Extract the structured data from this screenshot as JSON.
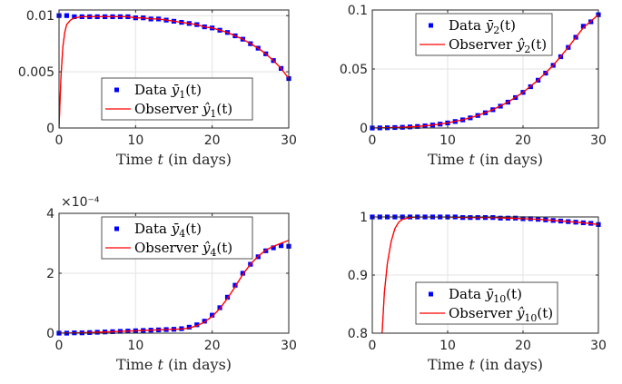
{
  "chart_data": [
    {
      "type": "line",
      "xlabel": "Time t (in days)",
      "xlim": [
        0,
        30
      ],
      "ylim": [
        0,
        0.0105
      ],
      "xticks": [
        "0",
        "10",
        "20",
        "30"
      ],
      "yticks": [
        "0",
        "0.005",
        "0.01"
      ],
      "ytick_values": [
        0,
        0.005,
        0.01
      ],
      "grid": true,
      "legend_position": "center",
      "series": [
        {
          "name": "Data ȳ1(t)",
          "style": "markers",
          "color": "#0000ff",
          "x": [
            0,
            1,
            2,
            3,
            4,
            5,
            6,
            7,
            8,
            9,
            10,
            11,
            12,
            13,
            14,
            15,
            16,
            17,
            18,
            19,
            20,
            21,
            22,
            23,
            24,
            25,
            26,
            27,
            28,
            29,
            30
          ],
          "y": [
            0.01,
            0.01,
            0.0099,
            0.0099,
            0.0099,
            0.0099,
            0.0099,
            0.0099,
            0.0099,
            0.0099,
            0.0098,
            0.0098,
            0.0097,
            0.0097,
            0.0096,
            0.0095,
            0.0094,
            0.0093,
            0.0092,
            0.009,
            0.0089,
            0.0087,
            0.0085,
            0.0082,
            0.0079,
            0.0075,
            0.0071,
            0.0066,
            0.006,
            0.0053,
            0.0044
          ]
        },
        {
          "name": "Observer ŷ1(t)",
          "style": "line",
          "color": "#ff0000",
          "x": [
            0,
            0.25,
            0.5,
            0.75,
            1,
            1.5,
            2,
            3,
            4,
            5,
            6,
            7,
            8,
            9,
            10,
            11,
            12,
            13,
            14,
            15,
            16,
            17,
            18,
            19,
            20,
            21,
            22,
            23,
            24,
            25,
            26,
            27,
            28,
            29,
            30
          ],
          "y": [
            0,
            0.0045,
            0.0072,
            0.0085,
            0.0092,
            0.0096,
            0.0098,
            0.0099,
            0.0099,
            0.0099,
            0.0099,
            0.0099,
            0.0099,
            0.0099,
            0.0098,
            0.0098,
            0.0097,
            0.0097,
            0.0096,
            0.0095,
            0.0094,
            0.0093,
            0.0092,
            0.009,
            0.0089,
            0.0087,
            0.0085,
            0.0082,
            0.0079,
            0.0075,
            0.0071,
            0.0066,
            0.006,
            0.0053,
            0.0044
          ]
        }
      ]
    },
    {
      "type": "line",
      "xlabel": "Time t (in days)",
      "xlim": [
        0,
        30
      ],
      "ylim": [
        0,
        0.1
      ],
      "xticks": [
        "0",
        "10",
        "20",
        "30"
      ],
      "yticks": [
        "0",
        "0.05",
        "0.1"
      ],
      "ytick_values": [
        0,
        0.05,
        0.1
      ],
      "grid": true,
      "legend_position": "top",
      "series": [
        {
          "name": "Data ȳ2(t)",
          "style": "markers",
          "color": "#0000ff",
          "x": [
            0,
            1,
            2,
            3,
            4,
            5,
            6,
            7,
            8,
            9,
            10,
            11,
            12,
            13,
            14,
            15,
            16,
            17,
            18,
            19,
            20,
            21,
            22,
            23,
            24,
            25,
            26,
            27,
            28,
            29,
            30
          ],
          "y": [
            0.0,
            0.0001,
            0.0002,
            0.0004,
            0.0006,
            0.0009,
            0.0013,
            0.0018,
            0.0025,
            0.0033,
            0.0043,
            0.0055,
            0.0069,
            0.0086,
            0.0106,
            0.0129,
            0.0155,
            0.0185,
            0.0219,
            0.0258,
            0.0302,
            0.035,
            0.0405,
            0.0465,
            0.0531,
            0.0604,
            0.0683,
            0.0769,
            0.0862,
            0.09,
            0.096
          ]
        },
        {
          "name": "Observer ŷ2(t)",
          "style": "line",
          "color": "#ff0000",
          "x": [
            0,
            2,
            4,
            6,
            8,
            10,
            12,
            14,
            16,
            18,
            20,
            22,
            24,
            26,
            28,
            30
          ],
          "y": [
            0.0,
            0.0002,
            0.0006,
            0.0013,
            0.0025,
            0.0043,
            0.0069,
            0.0106,
            0.0155,
            0.0219,
            0.0302,
            0.0405,
            0.0531,
            0.0683,
            0.085,
            0.096
          ]
        }
      ]
    },
    {
      "type": "line",
      "xlabel": "Time t (in days)",
      "xlim": [
        0,
        30
      ],
      "ylim": [
        0,
        4
      ],
      "y_exponent": "×10⁻⁴",
      "xticks": [
        "0",
        "10",
        "20",
        "30"
      ],
      "yticks": [
        "0",
        "2",
        "4"
      ],
      "ytick_values": [
        0,
        2,
        4
      ],
      "grid": true,
      "legend_position": "top",
      "series": [
        {
          "name": "Data ȳ4(t)",
          "style": "markers",
          "color": "#0000ff",
          "x": [
            0,
            1,
            2,
            3,
            4,
            5,
            6,
            7,
            8,
            9,
            10,
            11,
            12,
            13,
            14,
            15,
            16,
            17,
            18,
            19,
            20,
            21,
            22,
            23,
            24,
            25,
            26,
            27,
            28,
            29,
            30
          ],
          "y": [
            0.0,
            0.0,
            0.01,
            0.01,
            0.02,
            0.03,
            0.04,
            0.05,
            0.06,
            0.07,
            0.08,
            0.09,
            0.1,
            0.11,
            0.12,
            0.13,
            0.15,
            0.2,
            0.28,
            0.4,
            0.6,
            0.85,
            1.2,
            1.6,
            2.0,
            2.3,
            2.55,
            2.75,
            2.85,
            2.92,
            2.9
          ]
        },
        {
          "name": "Observer ŷ4(t)",
          "style": "line",
          "color": "#ff0000",
          "x": [
            0,
            2,
            4,
            6,
            8,
            10,
            12,
            14,
            16,
            17,
            18,
            19,
            20,
            21,
            22,
            23,
            24,
            25,
            26,
            27,
            28,
            29,
            30
          ],
          "y": [
            0.0,
            0.01,
            0.02,
            0.04,
            0.06,
            0.08,
            0.1,
            0.12,
            0.14,
            0.17,
            0.25,
            0.37,
            0.56,
            0.82,
            1.16,
            1.55,
            1.96,
            2.3,
            2.57,
            2.77,
            2.9,
            3.0,
            3.1
          ]
        }
      ]
    },
    {
      "type": "line",
      "xlabel": "Time t (in days)",
      "xlim": [
        0,
        30
      ],
      "ylim": [
        0.8,
        1.0
      ],
      "xticks": [
        "0",
        "10",
        "20",
        "30"
      ],
      "yticks": [
        "0.8",
        "0.9",
        "1"
      ],
      "ytick_values": [
        0.8,
        0.9,
        1.0
      ],
      "grid": true,
      "legend_position": "bottom",
      "series": [
        {
          "name": "Data ȳ10(t)",
          "style": "markers",
          "color": "#0000ff",
          "x": [
            0,
            1,
            2,
            3,
            4,
            5,
            6,
            7,
            8,
            9,
            10,
            11,
            12,
            13,
            14,
            15,
            16,
            17,
            18,
            19,
            20,
            21,
            22,
            23,
            24,
            25,
            26,
            27,
            28,
            29,
            30
          ],
          "y": [
            1.0,
            1.0,
            1.0,
            1.0,
            1.0,
            1.0,
            1.0,
            1.0,
            1.0,
            1.0,
            1.0,
            1.0,
            0.999,
            0.999,
            0.999,
            0.999,
            0.999,
            0.998,
            0.998,
            0.998,
            0.997,
            0.997,
            0.996,
            0.995,
            0.994,
            0.993,
            0.992,
            0.991,
            0.99,
            0.989,
            0.987
          ]
        },
        {
          "name": "Observer ŷ10(t)",
          "style": "line",
          "color": "#ff0000",
          "x": [
            1.3,
            1.6,
            2,
            2.5,
            3,
            3.5,
            4,
            5,
            6,
            8,
            10,
            12,
            14,
            16,
            18,
            20,
            22,
            24,
            26,
            28,
            30
          ],
          "y": [
            0.8,
            0.87,
            0.92,
            0.958,
            0.98,
            0.991,
            0.996,
            0.999,
            1.0,
            1.0,
            1.0,
            0.999,
            0.999,
            0.999,
            0.998,
            0.997,
            0.996,
            0.994,
            0.992,
            0.99,
            0.987
          ]
        }
      ]
    }
  ]
}
